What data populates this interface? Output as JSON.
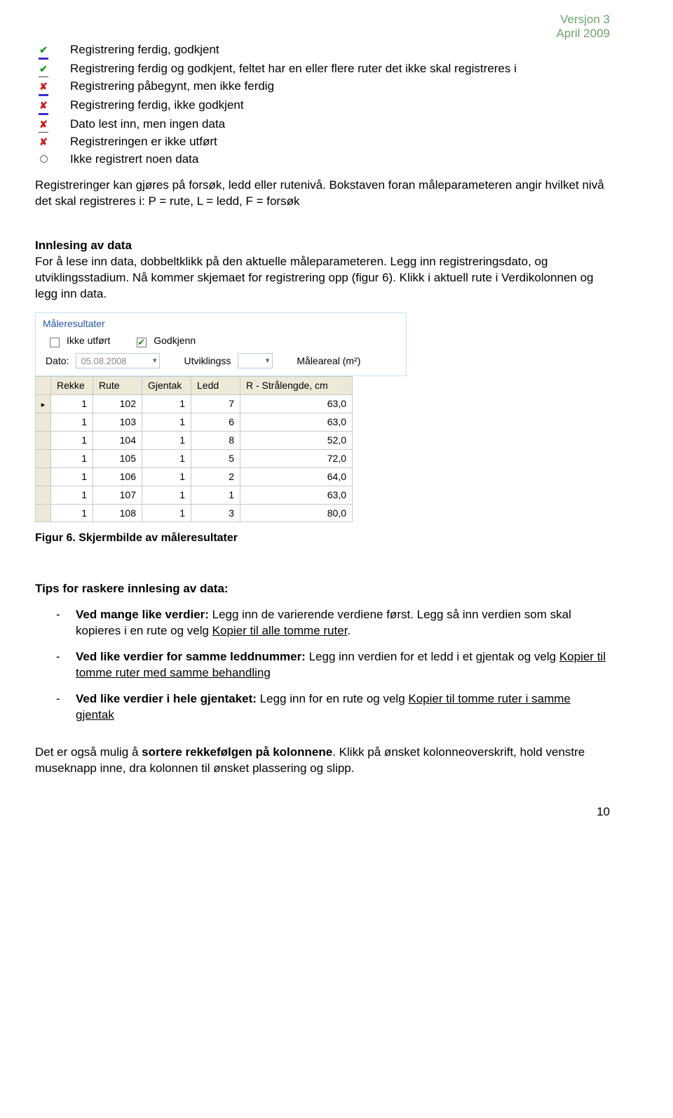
{
  "header": {
    "line1": "Versjon 3",
    "line2": "April 2009"
  },
  "legend": [
    {
      "icon": "check-purple",
      "text": "Registrering ferdig, godkjent"
    },
    {
      "icon": "check-thin",
      "text": "Registrering ferdig og godkjent, feltet har en eller flere ruter det ikke skal registreres i"
    },
    {
      "icon": "cross-purple",
      "text": "Registrering påbegynt, men ikke ferdig"
    },
    {
      "icon": "cross-purple",
      "text": "Registrering ferdig, ikke godkjent"
    },
    {
      "icon": "cross-thin",
      "text": "Dato lest inn, men ingen data"
    },
    {
      "icon": "cross-mixed",
      "text": "Registreringen er ikke utført"
    },
    {
      "icon": "circle",
      "text": "Ikke registrert noen data"
    }
  ],
  "para_registreringer": "Registreringer kan gjøres på forsøk, ledd eller rutenivå. Bokstaven foran måleparameteren angir hvilket nivå det skal registreres i: P = rute, L = ledd, F = forsøk",
  "innlesing": {
    "title": "Innlesing av data",
    "body": "For å lese inn data, dobbeltklikk på den aktuelle måleparameteren. Legg inn registreringsdato, og utviklingsstadium. Nå kommer skjemaet for registrering opp (figur 6). Klikk i aktuell rute i Verdikolonnen og legg inn data."
  },
  "shot": {
    "title": "Måleresultater",
    "ikke_utfort": "Ikke utført",
    "godkjenn": "Godkjenn",
    "dato_label": "Dato:",
    "dato_value": "05.08.2008",
    "utv_label": "Utviklingss",
    "areal_label": "Måleareal (m²)",
    "cols": [
      "Rekke",
      "Rute",
      "Gjentak",
      "Ledd",
      "R - Strålengde, cm"
    ],
    "rows": [
      [
        1,
        102,
        1,
        7,
        "63,0"
      ],
      [
        1,
        103,
        1,
        6,
        "63,0"
      ],
      [
        1,
        104,
        1,
        8,
        "52,0"
      ],
      [
        1,
        105,
        1,
        5,
        "72,0"
      ],
      [
        1,
        106,
        1,
        2,
        "64,0"
      ],
      [
        1,
        107,
        1,
        1,
        "63,0"
      ],
      [
        1,
        108,
        1,
        3,
        "80,0"
      ]
    ]
  },
  "fig_caption": "Figur 6. Skjermbilde av måleresultater",
  "tips": {
    "title": "Tips for raskere innlesing av data:",
    "items": [
      {
        "lead": "Ved mange like verdier:",
        "rest1": " Legg inn de varierende verdiene først. Legg så inn verdien som skal kopieres i en rute og velg ",
        "u1": "Kopier til alle tomme ruter",
        "rest2": "."
      },
      {
        "lead": "Ved like verdier for samme leddnummer:",
        "rest1": " Legg inn verdien for et ledd i et gjentak og velg ",
        "u1": "Kopier til tomme ruter med samme behandling",
        "rest2": ""
      },
      {
        "lead": "Ved like verdier i hele gjentaket:",
        "rest1": " Legg inn for en rute og velg ",
        "u1": "Kopier til tomme ruter i samme gjentak",
        "rest2": ""
      }
    ]
  },
  "sort_para": {
    "pre": "Det er også mulig å ",
    "bold": "sortere rekkefølgen på kolonnene",
    "post": ". Klikk på ønsket kolonneoverskrift, hold venstre museknapp inne, dra kolonnen til ønsket plassering og slipp."
  },
  "page_number": "10"
}
